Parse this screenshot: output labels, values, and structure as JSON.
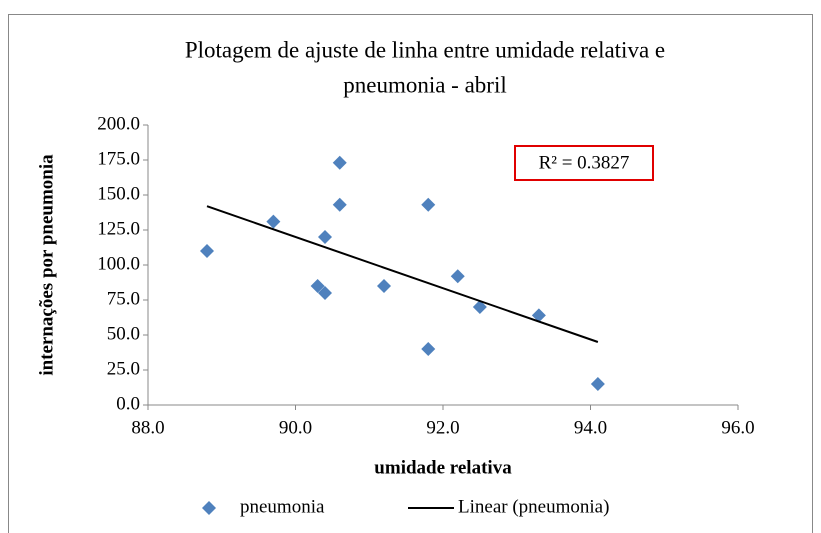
{
  "chart_data": {
    "type": "scatter",
    "title": [
      "Plotagem de ajuste de linha entre umidade relativa e",
      "pneumonia - abril"
    ],
    "x_label": "umidade relativa",
    "y_label": "internações por pneumonia",
    "annotation": "R² = 0.3827",
    "series": [
      {
        "name": "pneumonia",
        "style": "marker",
        "color": "#4f81bd",
        "x": [
          88.8,
          89.7,
          90.6,
          90.6,
          90.4,
          90.3,
          90.4,
          91.2,
          91.8,
          91.8,
          92.2,
          92.5,
          93.3,
          94.1
        ],
        "values": [
          110,
          131,
          173,
          143,
          120,
          85,
          80,
          85,
          143,
          40,
          92,
          70,
          64,
          15
        ]
      },
      {
        "name": "Linear (pneumonia)",
        "style": "line",
        "color": "#000000",
        "x": [
          88.8,
          94.1
        ],
        "values": [
          142,
          45
        ]
      }
    ],
    "xlim": [
      88,
      96
    ],
    "xticks": [
      {
        "value": 88,
        "label": "88.0"
      },
      {
        "value": 90,
        "label": "90.0"
      },
      {
        "value": 92,
        "label": "92.0"
      },
      {
        "value": 94,
        "label": "94.0"
      },
      {
        "value": 96,
        "label": "96.0"
      }
    ],
    "ylim": [
      0,
      200
    ],
    "yticks": [
      {
        "value": 0,
        "label": "0.0"
      },
      {
        "value": 25,
        "label": "25.0"
      },
      {
        "value": 50,
        "label": "50.0"
      },
      {
        "value": 75,
        "label": "75.0"
      },
      {
        "value": 100,
        "label": "100.0"
      },
      {
        "value": 125,
        "label": "125.0"
      },
      {
        "value": 150,
        "label": "150.0"
      },
      {
        "value": 175,
        "label": "175.0"
      },
      {
        "value": 200,
        "label": "200.0"
      }
    ],
    "grid": false,
    "legend": "bottom"
  }
}
